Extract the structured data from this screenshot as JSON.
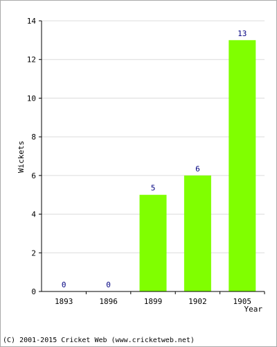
{
  "chart_data": {
    "type": "bar",
    "title": "",
    "xlabel": "Year",
    "ylabel": "Wickets",
    "categories": [
      "1893",
      "1896",
      "1899",
      "1902",
      "1905"
    ],
    "values": [
      0,
      0,
      5,
      6,
      13
    ],
    "ylim": [
      0,
      14
    ],
    "yticks": [
      "0",
      "2",
      "4",
      "6",
      "8",
      "10",
      "12",
      "14"
    ],
    "grid": true,
    "bar_color": "#80ff00",
    "value_label_color": "#000080"
  },
  "footer": {
    "copyright": "(C) 2001-2015 Cricket Web (www.cricketweb.net)"
  }
}
